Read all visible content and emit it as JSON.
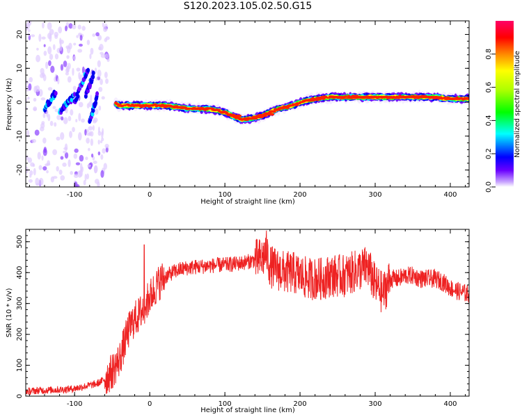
{
  "title": "S120.2023.105.02.50.G15",
  "chart_data": [
    {
      "type": "heatmap",
      "title": "S120.2023.105.02.50.G15",
      "xlabel": "Height of straight line (km)",
      "ylabel": "Frequency (Hz)",
      "xlim": [
        -165,
        425
      ],
      "ylim": [
        -25,
        24
      ],
      "x_ticks": [
        "-100",
        "0",
        "100",
        "200",
        "300",
        "400"
      ],
      "x_tick_values": [
        -100,
        0,
        100,
        200,
        300,
        400
      ],
      "y_ticks": [
        "-20",
        "-10",
        "0",
        "10",
        "20"
      ],
      "y_tick_values": [
        -20,
        -10,
        0,
        10,
        20
      ],
      "ridge_x": [
        -80,
        -70,
        -60,
        -50,
        -40,
        -30,
        -20,
        0,
        20,
        40,
        60,
        70,
        80,
        90,
        100,
        110,
        120,
        130,
        140,
        150,
        160,
        170,
        180,
        190,
        200,
        210,
        220,
        240,
        260,
        280,
        300,
        320,
        340,
        360,
        380,
        400,
        420
      ],
      "ridge_y": [
        7,
        1,
        0,
        0,
        -1,
        -1,
        -1,
        -1,
        -1,
        -1.5,
        -2,
        -2,
        -2,
        -2.5,
        -3,
        -4,
        -5,
        -5,
        -4.5,
        -4,
        -3,
        -2,
        -1.5,
        -1,
        0,
        0.5,
        1,
        1.5,
        1.5,
        1.5,
        1.5,
        1.5,
        1.5,
        1.5,
        1.5,
        1,
        1
      ],
      "colorbar": {
        "label": "Normalized spectral amplitude",
        "ticks": [
          "0.0",
          "0.2",
          "0.4",
          "0.6",
          "0.8"
        ],
        "tick_values": [
          0,
          0.2,
          0.4,
          0.6,
          0.8
        ],
        "range": [
          0,
          1
        ],
        "colors": [
          "#ffffff",
          "#6a00ff",
          "#0000ff",
          "#00ffff",
          "#00ff00",
          "#ffff00",
          "#ff8800",
          "#ff0000",
          "#ff0066"
        ]
      }
    },
    {
      "type": "line",
      "xlabel": "Height of straight line (km)",
      "ylabel": "SNR (10 * v/v)",
      "xlim": [
        -165,
        425
      ],
      "ylim": [
        0,
        540
      ],
      "x_ticks": [
        "-100",
        "0",
        "100",
        "200",
        "300",
        "400"
      ],
      "x_tick_values": [
        -100,
        0,
        100,
        200,
        300,
        400
      ],
      "y_ticks": [
        "0",
        "100",
        "200",
        "300",
        "400",
        "500"
      ],
      "y_tick_values": [
        0,
        100,
        200,
        300,
        400,
        500
      ],
      "color": "#ee2222",
      "series": [
        {
          "x": [
            -165,
            -150,
            -130,
            -110,
            -100,
            -90,
            -80,
            -70,
            -60,
            -50,
            -45,
            -40,
            -35,
            -30,
            -25,
            -20,
            -15,
            -10,
            -5,
            0,
            5,
            10,
            15,
            20,
            30,
            40,
            50,
            60,
            70,
            80,
            90,
            100,
            110,
            120,
            130,
            140,
            150,
            155,
            160,
            170,
            180,
            190,
            200,
            210,
            220,
            230,
            240,
            250,
            260,
            270,
            280,
            290,
            300,
            305,
            310,
            320,
            330,
            340,
            350,
            360,
            370,
            380,
            390,
            400,
            410,
            425
          ],
          "y": [
            15,
            18,
            20,
            22,
            25,
            30,
            35,
            40,
            55,
            80,
            100,
            120,
            160,
            200,
            230,
            250,
            260,
            280,
            300,
            320,
            340,
            360,
            375,
            385,
            400,
            410,
            415,
            418,
            420,
            422,
            424,
            425,
            427,
            430,
            435,
            440,
            445,
            470,
            420,
            410,
            400,
            400,
            390,
            380,
            380,
            380,
            390,
            390,
            390,
            400,
            410,
            420,
            360,
            350,
            330,
            380,
            380,
            390,
            390,
            380,
            380,
            380,
            370,
            350,
            340,
            330
          ]
        }
      ]
    }
  ]
}
